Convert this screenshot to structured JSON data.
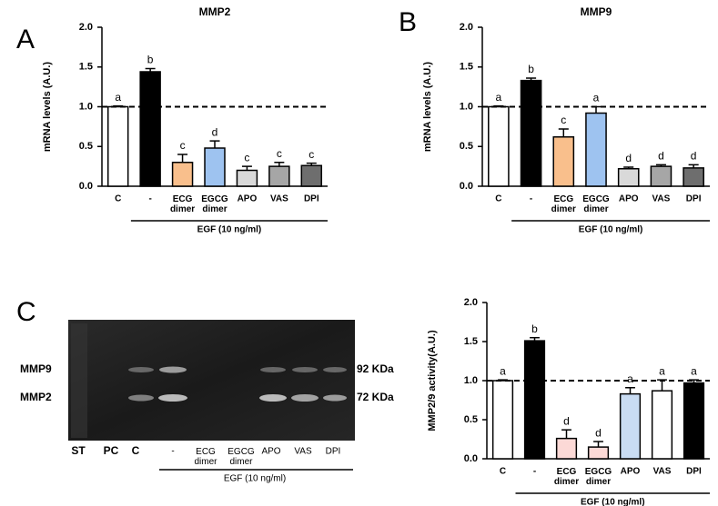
{
  "chart_data": [
    {
      "type": "bar",
      "panel": "A",
      "title": "MMP2",
      "ylabel": "mRNA levels (A.U.)",
      "categories": [
        "C",
        "-",
        "ECG dimer",
        "EGCG dimer",
        "APO",
        "VAS",
        "DPI"
      ],
      "values": [
        1.0,
        1.44,
        0.3,
        0.48,
        0.2,
        0.25,
        0.26
      ],
      "errors": [
        0.01,
        0.04,
        0.1,
        0.09,
        0.05,
        0.05,
        0.03
      ],
      "annotations": [
        "a",
        "b",
        "c",
        "d",
        "c",
        "c",
        "c"
      ],
      "colors": [
        "#ffffff",
        "#000000",
        "#f9bf8c",
        "#9ec3f0",
        "#d9d9d9",
        "#a6a6a6",
        "#6e6e6e"
      ],
      "group_label": "EGF (10 ng/ml)",
      "reference_line": 1,
      "ylim": [
        0,
        2
      ],
      "yticks": [
        {
          "value": 0,
          "label": "0.0"
        },
        0.5,
        {
          "value": 1,
          "label": "1.0"
        },
        1.5,
        {
          "value": 2,
          "label": "2.0"
        }
      ]
    },
    {
      "type": "bar",
      "panel": "B",
      "title": "MMP9",
      "ylabel": "mRNA levels (A.U.)",
      "categories": [
        "C",
        "-",
        "ECG dimer",
        "EGCG dimer",
        "APO",
        "VAS",
        "DPI"
      ],
      "values": [
        1.0,
        1.33,
        0.62,
        0.92,
        0.22,
        0.25,
        0.23
      ],
      "errors": [
        0.01,
        0.03,
        0.1,
        0.08,
        0.02,
        0.02,
        0.04
      ],
      "annotations": [
        "a",
        "b",
        "c",
        "a",
        "d",
        "d",
        "d"
      ],
      "colors": [
        "#ffffff",
        "#000000",
        "#f9bf8c",
        "#9ec3f0",
        "#d9d9d9",
        "#a6a6a6",
        "#6e6e6e"
      ],
      "group_label": "EGF (10 ng/ml)",
      "reference_line": 1,
      "ylim": [
        0,
        2
      ],
      "yticks": [
        {
          "value": 0,
          "label": "0.0"
        },
        0.5,
        {
          "value": 1,
          "label": "1.0"
        },
        1.5,
        {
          "value": 2,
          "label": "2.0"
        }
      ]
    },
    {
      "type": "bar",
      "ylabel": "MMP2/9 activity(A.U.)",
      "categories": [
        "C",
        "-",
        "ECG dimer",
        "EGCG dimer",
        "APO",
        "VAS",
        "DPI"
      ],
      "values": [
        1.0,
        1.51,
        0.26,
        0.15,
        0.83,
        0.87,
        0.97
      ],
      "errors": [
        0.01,
        0.04,
        0.11,
        0.07,
        0.08,
        0.14,
        0.04
      ],
      "annotations": [
        "a",
        "b",
        "d",
        "d",
        "a",
        "a",
        "a"
      ],
      "colors": [
        "#ffffff",
        "#000000",
        "#fcd9d6",
        "#fcd9d6",
        "#c9dcf3",
        "#ffffff",
        "#000000"
      ],
      "group_label": "EGF (10 ng/ml)",
      "reference_line": 1,
      "ylim": [
        0,
        2
      ],
      "yticks": [
        {
          "value": 0,
          "label": "0.0"
        },
        0.5,
        {
          "value": 1,
          "label": "1.0"
        },
        1.5,
        {
          "value": 2,
          "label": "2.0"
        }
      ]
    }
  ],
  "gel": {
    "panel": "C",
    "bands": [
      "MMP9",
      "MMP2"
    ],
    "sizes": [
      "92 KDa",
      "72 KDa"
    ],
    "lanes": [
      "ST",
      "PC",
      "C",
      "-",
      "ECG dimer",
      "EGCG dimer",
      "APO",
      "VAS",
      "DPI"
    ],
    "group_label": "EGF (10 ng/ml)"
  }
}
